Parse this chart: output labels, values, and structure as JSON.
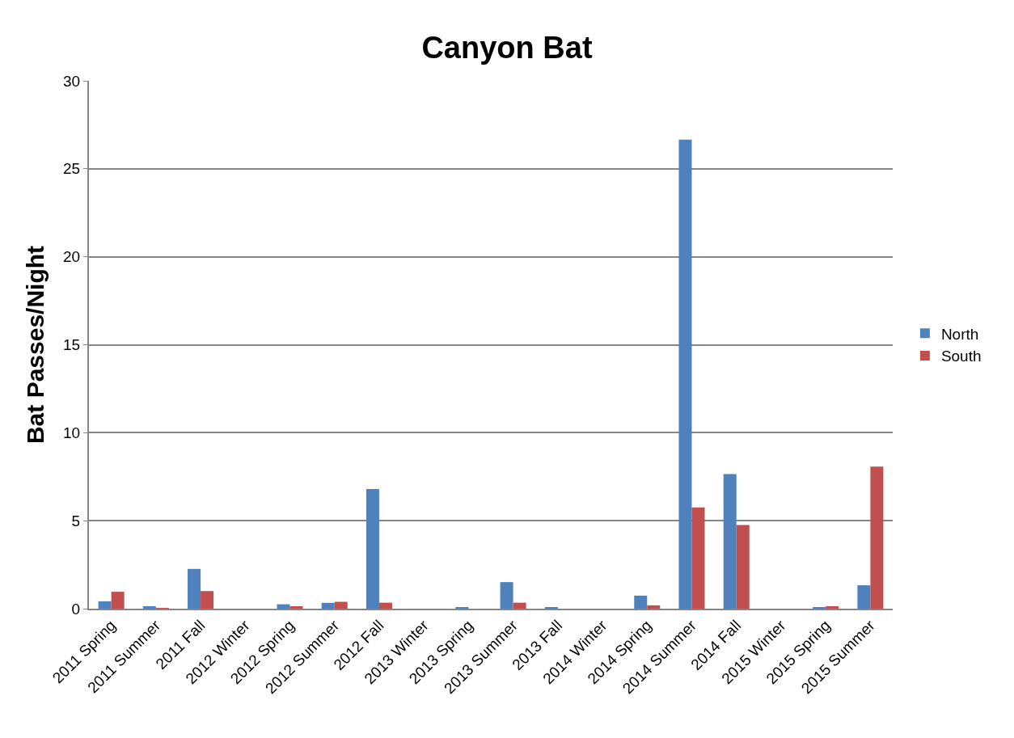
{
  "chart_data": {
    "type": "bar",
    "title": "Canyon Bat",
    "ylabel": "Bat Passes/Night",
    "categories": [
      "2011 Spring",
      "2011 Summer",
      "2011 Fall",
      "2012 Winter",
      "2012 Spring",
      "2012 Summer",
      "2012 Fall",
      "2013 Winter",
      "2013 Spring",
      "2013 Summer",
      "2013 Fall",
      "2014 Winter",
      "2014 Spring",
      "2014 Summer",
      "2014 Fall",
      "2015 Winter",
      "2015 Spring",
      "2015 Summer"
    ],
    "series": [
      {
        "name": "North",
        "color": "#4f81bd",
        "values": [
          0.42,
          0.14,
          2.26,
          0,
          0.25,
          0.33,
          6.8,
          0,
          0.06,
          1.51,
          0.06,
          0,
          0.74,
          26.66,
          7.65,
          0,
          0.06,
          1.33
        ]
      },
      {
        "name": "South",
        "color": "#c0504d",
        "values": [
          0.96,
          0.02,
          1.0,
          0,
          0.14,
          0.39,
          0.34,
          0,
          0,
          0.34,
          0,
          0,
          0.19,
          5.75,
          4.76,
          0,
          0.14,
          8.08
        ]
      }
    ],
    "ylim": [
      0,
      30
    ],
    "yticks": [
      0,
      5,
      10,
      15,
      20,
      25,
      30
    ],
    "grid": "y",
    "legend": "right"
  }
}
